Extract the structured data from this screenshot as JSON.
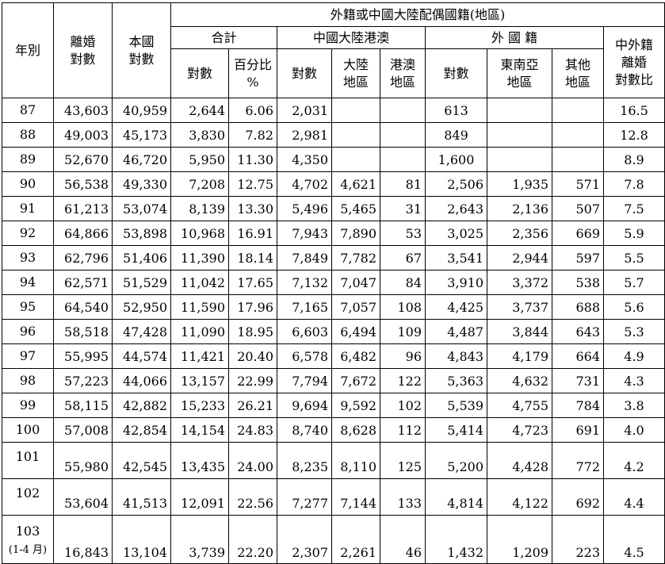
{
  "headers": {
    "year": "年別",
    "divorce_l1": "離婚",
    "divorce_l2": "對數",
    "native_l1": "本國",
    "native_l2": "對數",
    "foreign_group": "外籍或中國大陸配偶國籍(地區)",
    "total": "合計",
    "china_hkmo": "中國大陸港澳",
    "foreign": "外 國 籍",
    "ratio_l1": "中外籍",
    "ratio_l2": "離婚",
    "ratio_l3": "對數比",
    "count": "對數",
    "pct_l1": "百分比",
    "pct_l2": "%",
    "mainland_l1": "大陸",
    "mainland_l2": "地區",
    "hkmo_l1": "港澳",
    "hkmo_l2": "地區",
    "sea_l1": "東南亞",
    "sea_l2": "地區",
    "other_l1": "其他",
    "other_l2": "地區"
  },
  "rows": [
    {
      "year": "87",
      "divorce": "43,603",
      "native": "40,959",
      "total": "2,644",
      "pct": "6.06",
      "china": "2,031",
      "mainland": "",
      "hkmo": "",
      "foreign": "613",
      "sea": "",
      "other": "",
      "ratio": "16.5"
    },
    {
      "year": "88",
      "divorce": "49,003",
      "native": "45,173",
      "total": "3,830",
      "pct": "7.82",
      "china": "2,981",
      "mainland": "",
      "hkmo": "",
      "foreign": "849",
      "sea": "",
      "other": "",
      "ratio": "12.8"
    },
    {
      "year": "89",
      "divorce": "52,670",
      "native": "46,720",
      "total": "5,950",
      "pct": "11.30",
      "china": "4,350",
      "mainland": "",
      "hkmo": "",
      "foreign": "1,600",
      "sea": "",
      "other": "",
      "ratio": "8.9"
    },
    {
      "year": "90",
      "divorce": "56,538",
      "native": "49,330",
      "total": "7,208",
      "pct": "12.75",
      "china": "4,702",
      "mainland": "4,621",
      "hkmo": "81",
      "foreign": "2,506",
      "sea": "1,935",
      "other": "571",
      "ratio": "7.8"
    },
    {
      "year": "91",
      "divorce": "61,213",
      "native": "53,074",
      "total": "8,139",
      "pct": "13.30",
      "china": "5,496",
      "mainland": "5,465",
      "hkmo": "31",
      "foreign": "2,643",
      "sea": "2,136",
      "other": "507",
      "ratio": "7.5"
    },
    {
      "year": "92",
      "divorce": "64,866",
      "native": "53,898",
      "total": "10,968",
      "pct": "16.91",
      "china": "7,943",
      "mainland": "7,890",
      "hkmo": "53",
      "foreign": "3,025",
      "sea": "2,356",
      "other": "669",
      "ratio": "5.9"
    },
    {
      "year": "93",
      "divorce": "62,796",
      "native": "51,406",
      "total": "11,390",
      "pct": "18.14",
      "china": "7,849",
      "mainland": "7,782",
      "hkmo": "67",
      "foreign": "3,541",
      "sea": "2,944",
      "other": "597",
      "ratio": "5.5"
    },
    {
      "year": "94",
      "divorce": "62,571",
      "native": "51,529",
      "total": "11,042",
      "pct": "17.65",
      "china": "7,132",
      "mainland": "7,047",
      "hkmo": "84",
      "foreign": "3,910",
      "sea": "3,372",
      "other": "538",
      "ratio": "5.7"
    },
    {
      "year": "95",
      "divorce": "64,540",
      "native": "52,950",
      "total": "11,590",
      "pct": "17.96",
      "china": "7,165",
      "mainland": "7,057",
      "hkmo": "108",
      "foreign": "4,425",
      "sea": "3,737",
      "other": "688",
      "ratio": "5.6"
    },
    {
      "year": "96",
      "divorce": "58,518",
      "native": "47,428",
      "total": "11,090",
      "pct": "18.95",
      "china": "6,603",
      "mainland": "6,494",
      "hkmo": "109",
      "foreign": "4,487",
      "sea": "3,844",
      "other": "643",
      "ratio": "5.3"
    },
    {
      "year": "97",
      "divorce": "55,995",
      "native": "44,574",
      "total": "11,421",
      "pct": "20.40",
      "china": "6,578",
      "mainland": "6,482",
      "hkmo": "96",
      "foreign": "4,843",
      "sea": "4,179",
      "other": "664",
      "ratio": "4.9"
    },
    {
      "year": "98",
      "divorce": "57,223",
      "native": "44,066",
      "total": "13,157",
      "pct": "22.99",
      "china": "7,794",
      "mainland": "7,672",
      "hkmo": "122",
      "foreign": "5,363",
      "sea": "4,632",
      "other": "731",
      "ratio": "4.3"
    },
    {
      "year": "99",
      "divorce": "58,115",
      "native": "42,882",
      "total": "15,233",
      "pct": "26.21",
      "china": "9,694",
      "mainland": "9,592",
      "hkmo": "102",
      "foreign": "5,539",
      "sea": "4,755",
      "other": "784",
      "ratio": "3.8"
    },
    {
      "year": "100",
      "divorce": "57,008",
      "native": "42,854",
      "total": "14,154",
      "pct": "24.83",
      "china": "8,740",
      "mainland": "8,628",
      "hkmo": "112",
      "foreign": "5,414",
      "sea": "4,723",
      "other": "691",
      "ratio": "4.0"
    },
    {
      "year": "101",
      "divorce": "55,980",
      "native": "42,545",
      "total": "13,435",
      "pct": "24.00",
      "china": "8,235",
      "mainland": "8,110",
      "hkmo": "125",
      "foreign": "5,200",
      "sea": "4,428",
      "other": "772",
      "ratio": "4.2"
    },
    {
      "year": "102",
      "divorce": "53,604",
      "native": "41,513",
      "total": "12,091",
      "pct": "22.56",
      "china": "7,277",
      "mainland": "7,144",
      "hkmo": "133",
      "foreign": "4,814",
      "sea": "4,122",
      "other": "692",
      "ratio": "4.4"
    },
    {
      "year": "103",
      "year_note": "(1-4 月)",
      "divorce": "16,843",
      "native": "13,104",
      "total": "3,739",
      "pct": "22.20",
      "china": "2,307",
      "mainland": "2,261",
      "hkmo": "46",
      "foreign": "1,432",
      "sea": "1,209",
      "other": "223",
      "ratio": "4.5"
    }
  ]
}
